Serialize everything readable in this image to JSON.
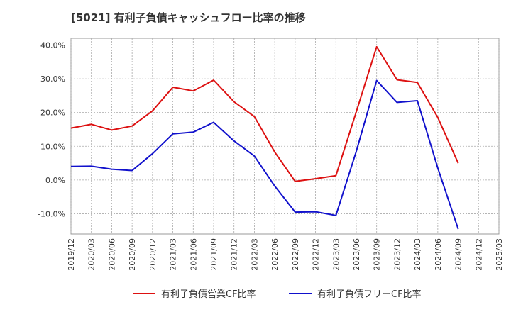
{
  "chart_data": {
    "type": "line",
    "title": "[5021]  有利子負債キャッシュフロー比率の推移",
    "xlabel": "",
    "ylabel": "",
    "x_ticks": [
      "2019/12",
      "2020/03",
      "2020/06",
      "2020/09",
      "2020/12",
      "2021/03",
      "2021/06",
      "2021/09",
      "2021/12",
      "2022/03",
      "2022/06",
      "2022/09",
      "2022/12",
      "2023/03",
      "2023/06",
      "2023/09",
      "2023/12",
      "2024/03",
      "2024/06",
      "2024/09",
      "2024/12",
      "2025/03"
    ],
    "ylim": [
      -16,
      42
    ],
    "y_ticks": [
      40,
      30,
      20,
      10,
      0,
      -10
    ],
    "y_tick_labels": [
      "40.0%",
      "30.0%",
      "20.0%",
      "10.0%",
      "0.0%",
      "-10.0%"
    ],
    "grid": true,
    "legend_position": "bottom",
    "series": [
      {
        "name": "有利子負債営業CF比率",
        "color": "#dd1111",
        "x": [
          "2019/12",
          "2020/03",
          "2020/06",
          "2020/09",
          "2020/12",
          "2021/03",
          "2021/06",
          "2021/09",
          "2021/12",
          "2022/03",
          "2022/06",
          "2022/09",
          "2022/12",
          "2023/03",
          "2023/06",
          "2023/09",
          "2023/12",
          "2024/03",
          "2024/06",
          "2024/09"
        ],
        "values": [
          15.4,
          16.5,
          14.8,
          16.0,
          20.5,
          27.5,
          26.4,
          29.6,
          23.2,
          18.8,
          8.3,
          -0.4,
          0.4,
          1.3,
          20.2,
          39.5,
          29.7,
          28.9,
          18.5,
          5.0
        ]
      },
      {
        "name": "有利子負債フリーCF比率",
        "color": "#1111cc",
        "x": [
          "2019/12",
          "2020/03",
          "2020/06",
          "2020/09",
          "2020/12",
          "2021/03",
          "2021/06",
          "2021/09",
          "2021/12",
          "2022/03",
          "2022/06",
          "2022/09",
          "2022/12",
          "2023/03",
          "2023/06",
          "2023/09",
          "2023/12",
          "2024/03",
          "2024/06",
          "2024/09"
        ],
        "values": [
          4.0,
          4.1,
          3.2,
          2.8,
          7.8,
          13.7,
          14.2,
          17.1,
          11.6,
          7.1,
          -1.8,
          -9.5,
          -9.4,
          -10.5,
          8.5,
          29.5,
          23.0,
          23.5,
          3.5,
          -14.5
        ]
      }
    ]
  }
}
